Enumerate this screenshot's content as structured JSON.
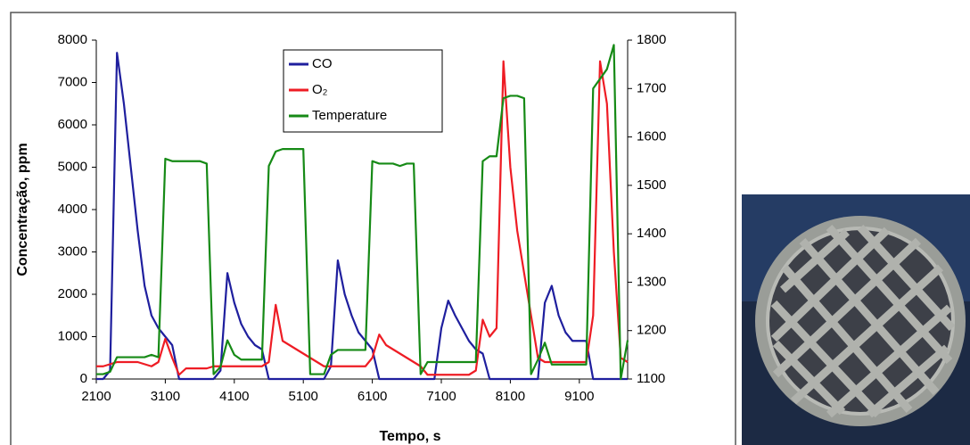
{
  "chart_data": {
    "type": "line",
    "x_label": "Tempo, s",
    "y_label": "Concentração, ppm",
    "x": [
      2100,
      2200,
      2300,
      2400,
      2500,
      2600,
      2700,
      2800,
      2900,
      3000,
      3100,
      3200,
      3300,
      3400,
      3500,
      3600,
      3700,
      3800,
      3900,
      4000,
      4100,
      4200,
      4300,
      4400,
      4500,
      4600,
      4700,
      4800,
      4900,
      5000,
      5100,
      5200,
      5300,
      5400,
      5500,
      5600,
      5700,
      5800,
      5900,
      6000,
      6100,
      6200,
      6300,
      6400,
      6500,
      6600,
      6700,
      6800,
      6900,
      7000,
      7100,
      7200,
      7300,
      7400,
      7500,
      7600,
      7700,
      7800,
      7900,
      8000,
      8100,
      8200,
      8300,
      8400,
      8500,
      8600,
      8700,
      8800,
      8900,
      9000,
      9100,
      9200,
      9300,
      9400,
      9500,
      9600,
      9700,
      9800
    ],
    "series": [
      {
        "name": "CO",
        "color": "#1f1f9e",
        "axis": "y",
        "values": [
          0,
          0,
          200,
          7700,
          6500,
          5000,
          3500,
          2200,
          1500,
          1200,
          1000,
          800,
          0,
          0,
          0,
          0,
          0,
          0,
          200,
          2500,
          1800,
          1300,
          1000,
          800,
          700,
          0,
          0,
          0,
          0,
          0,
          0,
          0,
          0,
          0,
          300,
          2800,
          2000,
          1500,
          1100,
          900,
          700,
          0,
          0,
          0,
          0,
          0,
          0,
          0,
          0,
          0,
          1200,
          1850,
          1500,
          1200,
          900,
          700,
          600,
          0,
          0,
          0,
          0,
          0,
          0,
          0,
          0,
          1800,
          2200,
          1500,
          1100,
          900,
          900,
          900,
          0,
          0,
          0,
          0,
          0,
          0
        ]
      },
      {
        "name": "O₂",
        "color": "#ee1c24",
        "axis": "y",
        "values": [
          300,
          300,
          350,
          400,
          400,
          400,
          400,
          350,
          300,
          400,
          950,
          500,
          100,
          250,
          250,
          250,
          250,
          300,
          300,
          300,
          300,
          300,
          300,
          300,
          300,
          400,
          1750,
          900,
          800,
          700,
          600,
          500,
          400,
          300,
          300,
          300,
          300,
          300,
          300,
          300,
          500,
          1050,
          800,
          700,
          600,
          500,
          400,
          300,
          100,
          100,
          100,
          100,
          100,
          100,
          100,
          200,
          1400,
          1000,
          1200,
          7500,
          5000,
          3500,
          2500,
          1500,
          500,
          400,
          400,
          400,
          400,
          400,
          400,
          400,
          1500,
          7500,
          6500,
          3000,
          500,
          400
        ]
      },
      {
        "name": "Temperature",
        "color": "#168a16",
        "axis": "y2",
        "values": [
          1110,
          1110,
          1115,
          1145,
          1145,
          1145,
          1145,
          1145,
          1150,
          1145,
          1555,
          1550,
          1550,
          1550,
          1550,
          1550,
          1545,
          1110,
          1125,
          1180,
          1150,
          1140,
          1140,
          1140,
          1140,
          1540,
          1570,
          1575,
          1575,
          1575,
          1575,
          1110,
          1110,
          1110,
          1150,
          1160,
          1160,
          1160,
          1160,
          1160,
          1550,
          1545,
          1545,
          1545,
          1540,
          1545,
          1545,
          1110,
          1135,
          1135,
          1135,
          1135,
          1135,
          1135,
          1135,
          1135,
          1550,
          1560,
          1560,
          1680,
          1685,
          1685,
          1680,
          1110,
          1140,
          1175,
          1130,
          1130,
          1130,
          1130,
          1130,
          1130,
          1700,
          1720,
          1740,
          1790,
          1100,
          1180
        ]
      }
    ],
    "xlim": [
      2100,
      9800
    ],
    "xticks": [
      2100,
      3100,
      4100,
      5100,
      6100,
      7100,
      8100,
      9100
    ],
    "ylim": [
      0,
      8000
    ],
    "yticks": [
      0,
      1000,
      2000,
      3000,
      4000,
      5000,
      6000,
      7000,
      8000
    ],
    "y2lim": [
      1100,
      1800
    ],
    "y2ticks": [
      1100,
      1200,
      1300,
      1400,
      1500,
      1600,
      1700,
      1800
    ],
    "grid": false
  }
}
